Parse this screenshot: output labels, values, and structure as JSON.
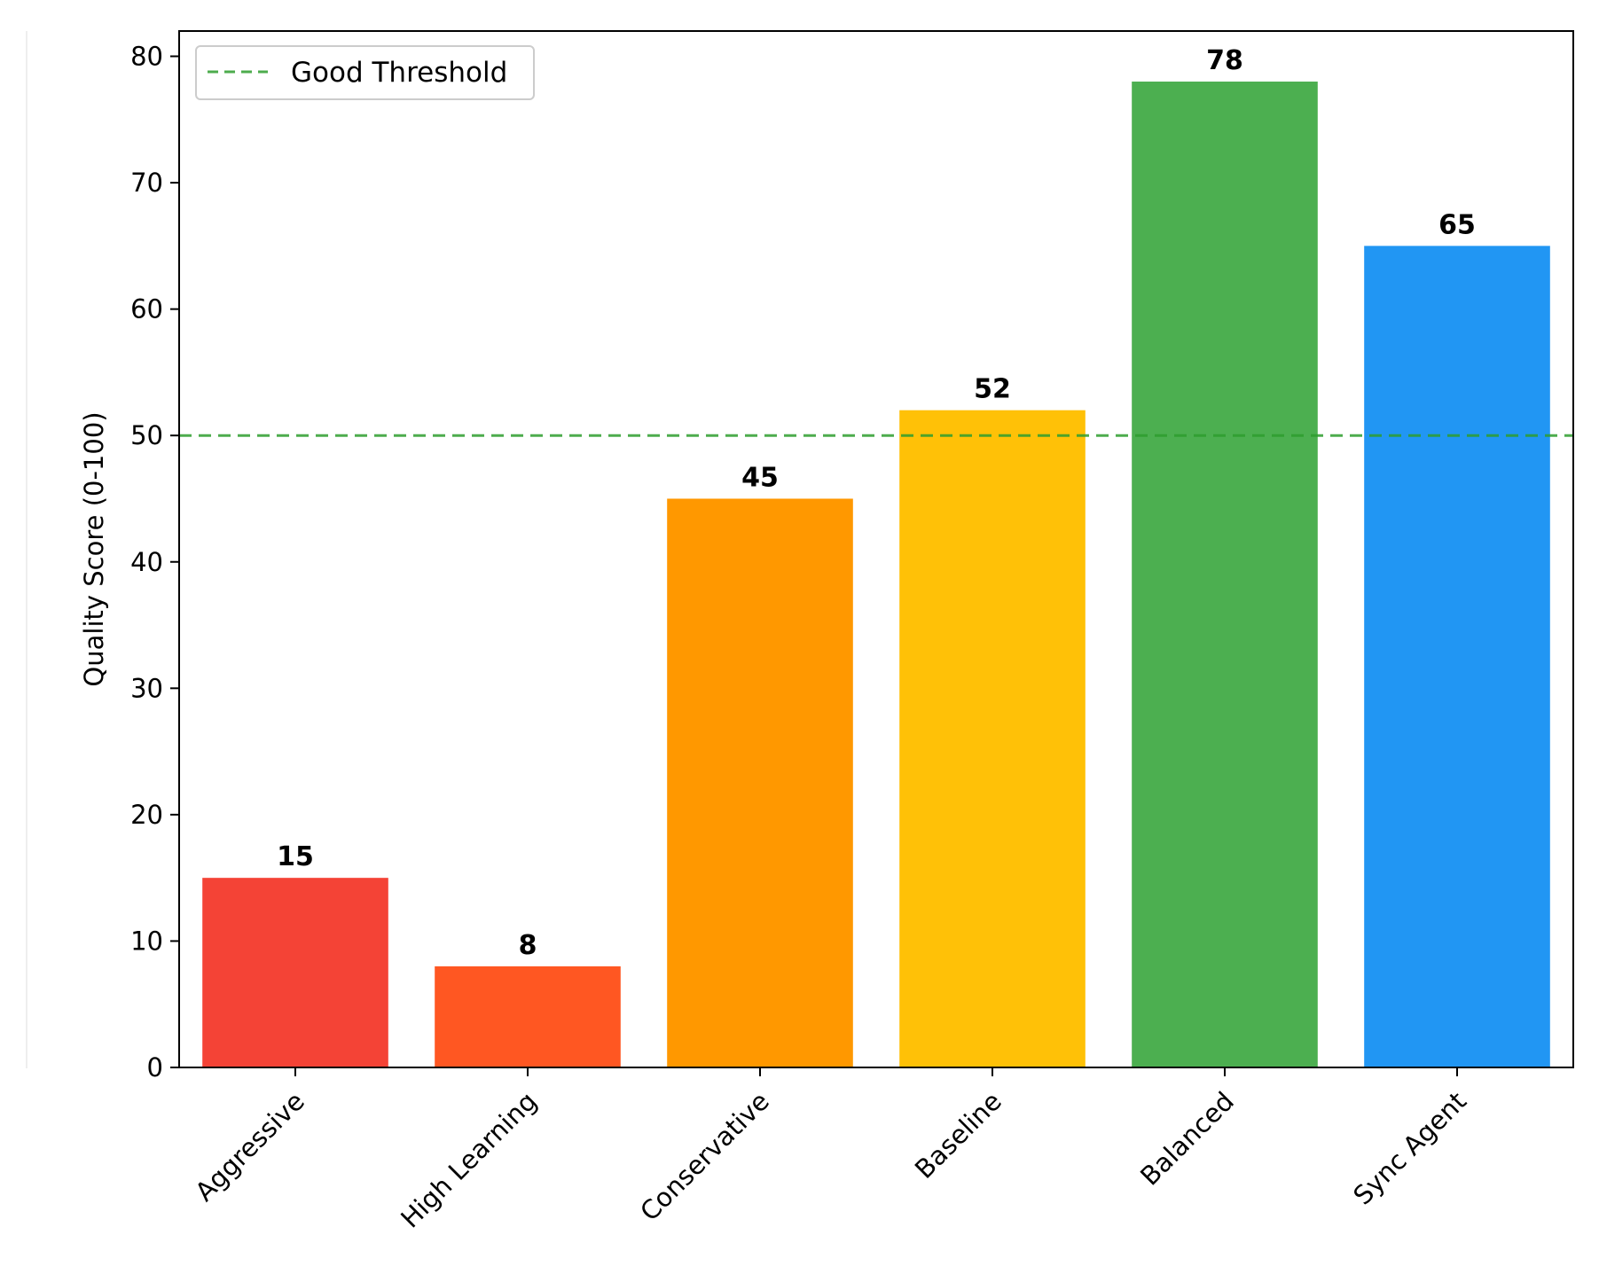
{
  "chart_data": {
    "type": "bar",
    "categories": [
      "Aggressive",
      "High Learning",
      "Conservative",
      "Baseline",
      "Balanced",
      "Sync Agent"
    ],
    "values": [
      15,
      8,
      45,
      52,
      78,
      65
    ],
    "data_labels": [
      "15",
      "8",
      "45",
      "52",
      "78",
      "65"
    ],
    "colors": [
      "#f44336",
      "#ff5722",
      "#ff9800",
      "#ffc107",
      "#4caf50",
      "#2196f3"
    ],
    "ylabel": "Quality Score (0-100)",
    "xlabel": "",
    "ylim": [
      0,
      82
    ],
    "yticks": [
      0,
      10,
      20,
      30,
      40,
      50,
      60,
      70,
      80
    ],
    "ytick_labels": [
      "0",
      "10",
      "20",
      "30",
      "40",
      "50",
      "60",
      "70",
      "80"
    ],
    "threshold": {
      "value": 50,
      "label": "Good Threshold",
      "color": "#2e9e2e",
      "style": "dashed"
    },
    "grid": false,
    "legend_position": "upper-left",
    "xtick_rotation": 45
  }
}
